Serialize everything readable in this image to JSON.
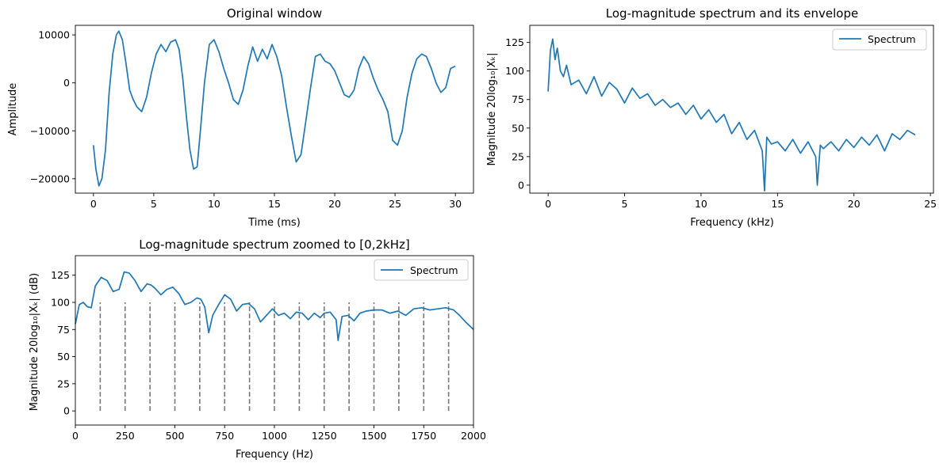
{
  "chart_data": [
    {
      "type": "line",
      "title": "Original window",
      "xlabel": "Time (ms)",
      "ylabel": "Amplitude",
      "xlim": [
        -1.5,
        31.5
      ],
      "ylim": [
        -23000,
        12000
      ],
      "xticks": [
        0,
        5,
        10,
        15,
        20,
        25,
        30
      ],
      "xtick_labels": [
        "0",
        "5",
        "10",
        "15",
        "20",
        "25",
        "30"
      ],
      "yticks": [
        -20000,
        -10000,
        0,
        10000
      ],
      "ytick_labels": [
        "−20000",
        "−10000",
        "0",
        "10000"
      ],
      "color": "#1f77b4",
      "grid": false,
      "series": [
        {
          "x": [
            0,
            0.2,
            0.45,
            0.7,
            1.0,
            1.3,
            1.6,
            1.9,
            2.1,
            2.4,
            2.7,
            3.0,
            3.3,
            3.6,
            4.0,
            4.4,
            4.8,
            5.2,
            5.6,
            6.0,
            6.4,
            6.8,
            7.1,
            7.4,
            7.7,
            8.0,
            8.3,
            8.6,
            8.9,
            9.2,
            9.6,
            10.0,
            10.4,
            10.8,
            11.2,
            11.6,
            12.0,
            12.4,
            12.8,
            13.2,
            13.6,
            14.0,
            14.4,
            14.8,
            15.2,
            15.6,
            16.0,
            16.4,
            16.8,
            17.2,
            17.6,
            18.0,
            18.4,
            18.8,
            19.2,
            19.6,
            20.0,
            20.4,
            20.8,
            21.2,
            21.6,
            22.0,
            22.4,
            22.8,
            23.2,
            23.6,
            24.0,
            24.4,
            24.8,
            25.2,
            25.6,
            26.0,
            26.4,
            26.8,
            27.2,
            27.6,
            28.0,
            28.4,
            28.8,
            29.2,
            29.6,
            30.0
          ],
          "y": [
            -13000,
            -18000,
            -21500,
            -20000,
            -14000,
            -2000,
            6000,
            10000,
            10800,
            9000,
            4000,
            -1500,
            -3500,
            -5000,
            -6000,
            -3000,
            2000,
            6000,
            8000,
            6500,
            8500,
            9000,
            7000,
            1000,
            -7000,
            -14000,
            -18000,
            -17500,
            -9000,
            0,
            8000,
            9000,
            6500,
            3000,
            0,
            -3500,
            -4500,
            -1500,
            3500,
            7500,
            4500,
            7000,
            5000,
            8000,
            5500,
            1500,
            -5000,
            -11000,
            -16500,
            -15000,
            -8000,
            -1000,
            5500,
            6000,
            4500,
            4000,
            2500,
            0,
            -2500,
            -3000,
            -1500,
            3000,
            5500,
            4000,
            1000,
            -1500,
            -3500,
            -6000,
            -12000,
            -13000,
            -10000,
            -3000,
            2000,
            5000,
            6000,
            5500,
            3000,
            0,
            -2000,
            -1000,
            3000,
            3500
          ]
        }
      ]
    },
    {
      "type": "line",
      "title": "Log-magnitude spectrum and its envelope",
      "xlabel": "Frequency (kHz)",
      "ylabel": "Magnitude 20log₁₀|Xₖ|",
      "xlim": [
        -1.2,
        25.2
      ],
      "ylim": [
        -7,
        140
      ],
      "xticks": [
        0,
        5,
        10,
        15,
        20,
        25
      ],
      "xtick_labels": [
        "0",
        "5",
        "10",
        "15",
        "20",
        "25"
      ],
      "yticks": [
        0,
        25,
        50,
        75,
        100,
        125
      ],
      "ytick_labels": [
        "0",
        "25",
        "50",
        "75",
        "100",
        "125"
      ],
      "color": "#1f77b4",
      "legend": "upper-right",
      "grid": false,
      "series": [
        {
          "name": "Spectrum",
          "x": [
            0,
            0.15,
            0.3,
            0.45,
            0.6,
            0.8,
            1.0,
            1.2,
            1.5,
            2.0,
            2.5,
            3.0,
            3.5,
            4.0,
            4.5,
            5.0,
            5.5,
            6.0,
            6.5,
            7.0,
            7.5,
            8.0,
            8.5,
            9.0,
            9.5,
            10.0,
            10.5,
            11.0,
            11.5,
            12.0,
            12.5,
            13.0,
            13.5,
            14.0,
            14.15,
            14.3,
            14.6,
            15.0,
            15.5,
            16.0,
            16.5,
            17.0,
            17.5,
            17.6,
            17.8,
            18.0,
            18.5,
            19.0,
            19.5,
            20.0,
            20.5,
            21.0,
            21.5,
            22.0,
            22.5,
            23.0,
            23.5,
            24.0
          ],
          "y": [
            82,
            118,
            128,
            110,
            120,
            100,
            95,
            105,
            88,
            92,
            80,
            95,
            78,
            90,
            84,
            72,
            85,
            76,
            80,
            70,
            75,
            68,
            72,
            62,
            70,
            58,
            66,
            55,
            62,
            45,
            55,
            40,
            48,
            30,
            -5,
            42,
            36,
            38,
            30,
            40,
            28,
            38,
            25,
            0,
            35,
            32,
            38,
            30,
            40,
            33,
            42,
            35,
            44,
            30,
            45,
            40,
            48,
            44
          ]
        }
      ]
    },
    {
      "type": "line",
      "title": "Log-magnitude spectrum zoomed to [0,2kHz]",
      "xlabel": "Frequency (Hz)",
      "ylabel": "Magnitude 20log₁₀|Xₖ| (dB)",
      "xlim": [
        0,
        2000
      ],
      "ylim": [
        -13,
        143
      ],
      "xticks": [
        0,
        250,
        500,
        750,
        1000,
        1250,
        1500,
        1750,
        2000
      ],
      "xtick_labels": [
        "0",
        "250",
        "500",
        "750",
        "1000",
        "1250",
        "1500",
        "1750",
        "2000"
      ],
      "yticks": [
        0,
        25,
        50,
        75,
        100,
        125
      ],
      "ytick_labels": [
        "0",
        "25",
        "50",
        "75",
        "100",
        "125"
      ],
      "color": "#1f77b4",
      "legend": "upper-right",
      "grid": false,
      "series": [
        {
          "name": "Spectrum",
          "x": [
            0,
            20,
            40,
            60,
            80,
            100,
            130,
            160,
            190,
            220,
            245,
            270,
            300,
            330,
            360,
            380,
            400,
            430,
            460,
            490,
            520,
            550,
            580,
            610,
            630,
            650,
            670,
            690,
            720,
            750,
            780,
            810,
            840,
            870,
            900,
            930,
            960,
            990,
            1020,
            1050,
            1080,
            1110,
            1140,
            1170,
            1200,
            1230,
            1250,
            1280,
            1310,
            1320,
            1340,
            1370,
            1400,
            1430,
            1460,
            1500,
            1540,
            1580,
            1620,
            1660,
            1700,
            1740,
            1780,
            1820,
            1860,
            1900,
            1930,
            1960,
            2000
          ],
          "y": [
            80,
            98,
            100,
            96,
            95,
            115,
            123,
            120,
            110,
            112,
            128,
            127,
            120,
            110,
            117,
            116,
            113,
            107,
            112,
            114,
            108,
            98,
            100,
            104,
            103,
            96,
            72,
            88,
            98,
            107,
            103,
            92,
            98,
            99,
            94,
            82,
            88,
            94,
            88,
            90,
            85,
            91,
            90,
            84,
            90,
            86,
            90,
            91,
            84,
            65,
            87,
            88,
            83,
            90,
            92,
            93,
            93,
            90,
            92,
            88,
            94,
            95,
            93,
            94,
            95,
            93,
            88,
            82,
            75
          ]
        }
      ],
      "vlines": {
        "x": [
          125,
          250,
          375,
          500,
          625,
          750,
          875,
          1000,
          1125,
          1250,
          1375,
          1500,
          1625,
          1750,
          1875
        ],
        "ymin": 0,
        "ymax": 100,
        "color": "#777777",
        "style": "dashed"
      }
    }
  ]
}
